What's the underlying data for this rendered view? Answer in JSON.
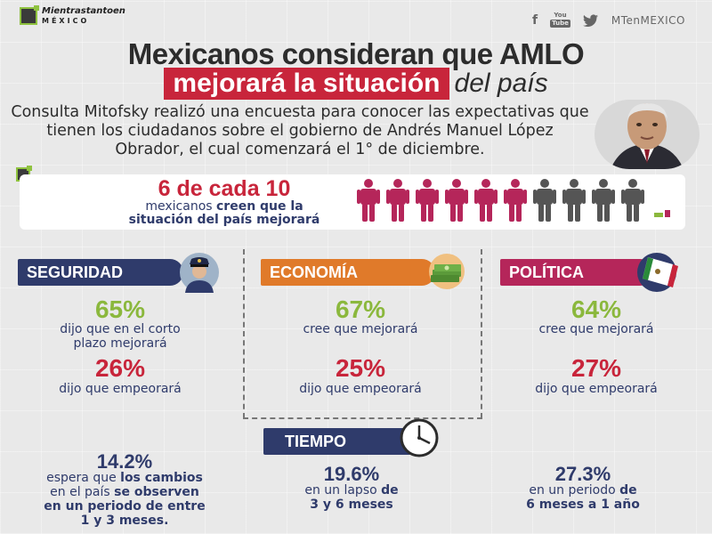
{
  "header": {
    "logo_top": "Mientrastantoen",
    "logo_bottom": "MÉXICO",
    "social_facebook": "f",
    "social_youtube_top": "You",
    "social_youtube_bottom": "Tube",
    "social_handle": "MTenMEXICO"
  },
  "title": {
    "line1": "Mexicanos consideran que AMLO",
    "line2_highlight": "mejorará la situación",
    "line2_rest": "del país"
  },
  "intro": "Consulta Mitofsky realizó una encuesta para conocer las expectativas que tienen los ciudadanos sobre el gobierno de Andrés Manuel López Obrador, el cual comenzará el 1° de diciembre.",
  "banner": {
    "headline": "6 de cada 10",
    "sub1_normal": "mexicanos ",
    "sub1_bold": "creen que la",
    "sub2_bold": "situación del país mejorará",
    "people_total": 10,
    "people_highlighted": 6,
    "color_highlight": "#b5265a",
    "color_rest": "#555555"
  },
  "categories": [
    {
      "label": "SEGURIDAD",
      "color": "#2f3b6b",
      "icon": "police-icon",
      "better_pct": "65%",
      "better_text_1": "dijo que en el corto",
      "better_text_2": "plazo mejorará",
      "worse_pct": "26%",
      "worse_text": "dijo que empeorará"
    },
    {
      "label": "ECONOMÍA",
      "color": "#e07a2a",
      "icon": "money-icon",
      "better_pct": "67%",
      "better_text_1": "cree que mejorará",
      "worse_pct": "25%",
      "worse_text": "dijo que empeorará"
    },
    {
      "label": "POLÍTICA",
      "color": "#b5265a",
      "icon": "flag-icon",
      "better_pct": "64%",
      "better_text_1": "cree que mejorará",
      "worse_pct": "27%",
      "worse_text": "dijo que empeorará"
    }
  ],
  "tiempo": {
    "label": "TIEMPO",
    "items": [
      {
        "pct": "14.2%",
        "l1a": "espera que ",
        "l1b": "los cambios",
        "l2a": "en el país ",
        "l2b": "se observen",
        "l3": "en un periodo de entre",
        "l4": "1 y 3 meses."
      },
      {
        "pct": "19.6%",
        "l1a": "en un lapso ",
        "l1b": "de",
        "l2": "3 y 6 meses"
      },
      {
        "pct": "27.3%",
        "l1a": "en un periodo ",
        "l1b": "de",
        "l2": "6 meses a 1 año"
      }
    ]
  }
}
